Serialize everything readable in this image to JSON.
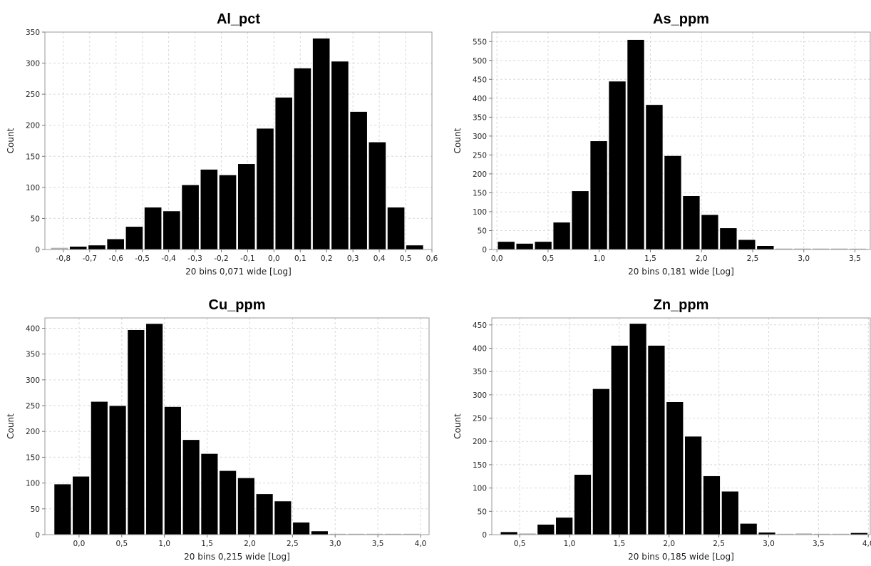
{
  "chart_data": [
    {
      "type": "bar",
      "title": "Al_pct",
      "xlabel": "20 bins 0,071 wide [Log]",
      "ylabel": "Count",
      "grid": true,
      "xlim": [
        -0.87,
        0.6
      ],
      "ylim": [
        0,
        350
      ],
      "bin_width": 0.071,
      "x_ticks": [
        -0.8,
        -0.7,
        -0.6,
        -0.5,
        -0.4,
        -0.3,
        -0.2,
        -0.1,
        0.0,
        0.1,
        0.2,
        0.3,
        0.4,
        0.5,
        0.6
      ],
      "x_tick_labels": [
        "-0,8",
        "-0,7",
        "-0,6",
        "-0,5",
        "-0,4",
        "-0,3",
        "-0,2",
        "-0,1",
        "0,0",
        "0,1",
        "0,2",
        "0,3",
        "0,4",
        "0,5",
        "0,6"
      ],
      "y_ticks": [
        0,
        50,
        100,
        150,
        200,
        250,
        300,
        350
      ],
      "y_tick_labels": [
        "0",
        "50",
        "100",
        "150",
        "200",
        "250",
        "300",
        "350"
      ],
      "bin_starts": [
        -0.85,
        -0.779,
        -0.708,
        -0.637,
        -0.566,
        -0.495,
        -0.424,
        -0.353,
        -0.282,
        -0.211,
        -0.14,
        -0.069,
        0.002,
        0.073,
        0.144,
        0.215,
        0.286,
        0.357,
        0.428,
        0.499
      ],
      "values": [
        3,
        5,
        7,
        17,
        37,
        68,
        62,
        104,
        129,
        120,
        138,
        195,
        245,
        292,
        340,
        303,
        222,
        173,
        68,
        7
      ],
      "bar_color": "#000000",
      "low_count_color": "#b0b0b0"
    },
    {
      "type": "bar",
      "title": "As_ppm",
      "xlabel": "20 bins 0,181 wide [Log]",
      "ylabel": "Count",
      "grid": true,
      "xlim": [
        -0.05,
        3.65
      ],
      "ylim": [
        0,
        575
      ],
      "bin_width": 0.181,
      "x_ticks": [
        0.0,
        0.5,
        1.0,
        1.5,
        2.0,
        2.5,
        3.0,
        3.5
      ],
      "x_tick_labels": [
        "0,0",
        "0,5",
        "1,0",
        "1,5",
        "2,0",
        "2,5",
        "3,0",
        "3,5"
      ],
      "y_ticks": [
        0,
        50,
        100,
        150,
        200,
        250,
        300,
        350,
        400,
        450,
        500,
        550
      ],
      "y_tick_labels": [
        "0",
        "50",
        "100",
        "150",
        "200",
        "250",
        "300",
        "350",
        "400",
        "450",
        "500",
        "550"
      ],
      "bin_starts": [
        0.0,
        0.181,
        0.362,
        0.543,
        0.724,
        0.905,
        1.086,
        1.267,
        1.448,
        1.629,
        1.81,
        1.991,
        2.172,
        2.353,
        2.534,
        2.715,
        2.896,
        3.077,
        3.258,
        3.439
      ],
      "values": [
        21,
        16,
        21,
        72,
        155,
        287,
        445,
        555,
        383,
        248,
        142,
        92,
        57,
        26,
        10,
        3,
        3,
        3,
        3,
        2
      ],
      "bar_color": "#000000",
      "low_count_color": "#b0b0b0"
    },
    {
      "type": "bar",
      "title": "Cu_ppm",
      "xlabel": "20 bins 0,215 wide [Log]",
      "ylabel": "Count",
      "grid": true,
      "xlim": [
        -0.4,
        4.1
      ],
      "ylim": [
        0,
        420
      ],
      "bin_width": 0.215,
      "x_ticks": [
        0.0,
        0.5,
        1.0,
        1.5,
        2.0,
        2.5,
        3.0,
        3.5,
        4.0
      ],
      "x_tick_labels": [
        "0,0",
        "0,5",
        "1,0",
        "1,5",
        "2,0",
        "2,5",
        "3,0",
        "3,5",
        "4,0"
      ],
      "y_ticks": [
        0,
        50,
        100,
        150,
        200,
        250,
        300,
        350,
        400
      ],
      "y_tick_labels": [
        "0",
        "50",
        "100",
        "150",
        "200",
        "250",
        "300",
        "350",
        "400"
      ],
      "bin_starts": [
        -0.3,
        -0.085,
        0.13,
        0.345,
        0.56,
        0.775,
        0.99,
        1.205,
        1.42,
        1.635,
        1.85,
        2.065,
        2.28,
        2.495,
        2.71,
        2.925,
        3.14,
        3.355,
        3.57,
        3.785
      ],
      "values": [
        98,
        113,
        258,
        250,
        397,
        409,
        248,
        184,
        157,
        124,
        110,
        79,
        65,
        24,
        7,
        2,
        1,
        1,
        2,
        2
      ],
      "bar_color": "#000000",
      "low_count_color": "#b0b0b0"
    },
    {
      "type": "bar",
      "title": "Zn_ppm",
      "xlabel": "20 bins 0,185 wide [Log]",
      "ylabel": "Count",
      "grid": true,
      "xlim": [
        0.22,
        4.02
      ],
      "ylim": [
        0,
        465
      ],
      "bin_width": 0.185,
      "x_ticks": [
        0.5,
        1.0,
        1.5,
        2.0,
        2.5,
        3.0,
        3.5,
        4.0
      ],
      "x_tick_labels": [
        "0,5",
        "1,0",
        "1,5",
        "2,0",
        "2,5",
        "3,0",
        "3,5",
        "4,0"
      ],
      "y_ticks": [
        0,
        50,
        100,
        150,
        200,
        250,
        300,
        350,
        400,
        450
      ],
      "y_tick_labels": [
        "0",
        "50",
        "100",
        "150",
        "200",
        "250",
        "300",
        "350",
        "400",
        "450"
      ],
      "bin_starts": [
        0.3,
        0.485,
        0.67,
        0.855,
        1.04,
        1.225,
        1.41,
        1.595,
        1.78,
        1.965,
        2.15,
        2.335,
        2.52,
        2.705,
        2.89,
        3.075,
        3.26,
        3.445,
        3.63,
        3.815
      ],
      "values": [
        6,
        3,
        22,
        37,
        129,
        313,
        406,
        453,
        406,
        285,
        211,
        126,
        93,
        24,
        5,
        2,
        3,
        2,
        1,
        4
      ],
      "bar_color": "#000000",
      "low_count_color": "#b0b0b0"
    }
  ]
}
